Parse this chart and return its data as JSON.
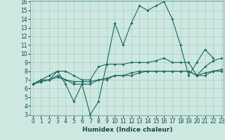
{
  "xlabel": "Humidex (Indice chaleur)",
  "background_color": "#cce8e0",
  "grid_color": "#aaccc4",
  "line_color": "#1a6860",
  "x": [
    0,
    1,
    2,
    3,
    4,
    5,
    6,
    7,
    8,
    9,
    10,
    11,
    12,
    13,
    14,
    15,
    16,
    17,
    18,
    19,
    20,
    21,
    22,
    23
  ],
  "line1": [
    6.5,
    7.0,
    7.5,
    8.0,
    6.5,
    4.5,
    6.5,
    3.0,
    4.5,
    8.8,
    13.5,
    11.0,
    13.5,
    15.5,
    15.0,
    15.5,
    16.0,
    14.0,
    11.0,
    7.5,
    9.0,
    10.5,
    9.5,
    null
  ],
  "line2": [
    6.5,
    7.0,
    7.0,
    8.0,
    8.0,
    7.5,
    7.0,
    7.0,
    8.5,
    8.8,
    8.8,
    8.8,
    9.0,
    9.0,
    9.0,
    9.2,
    9.5,
    9.0,
    9.0,
    9.0,
    7.5,
    8.5,
    9.2,
    9.5
  ],
  "line3": [
    6.5,
    6.8,
    7.0,
    7.5,
    7.0,
    6.5,
    6.5,
    6.5,
    7.0,
    7.0,
    7.5,
    7.5,
    7.5,
    7.8,
    8.0,
    8.0,
    8.0,
    8.0,
    8.0,
    8.0,
    7.5,
    7.5,
    8.0,
    8.0
  ],
  "line4": [
    6.5,
    6.8,
    7.0,
    7.3,
    7.0,
    6.8,
    6.8,
    6.8,
    7.0,
    7.2,
    7.5,
    7.5,
    7.8,
    8.0,
    8.0,
    8.0,
    8.0,
    8.0,
    8.0,
    8.0,
    7.5,
    7.8,
    8.0,
    8.2
  ],
  "ylim": [
    3,
    16
  ],
  "yticks": [
    3,
    4,
    5,
    6,
    7,
    8,
    9,
    10,
    11,
    12,
    13,
    14,
    15,
    16
  ],
  "xticks": [
    0,
    1,
    2,
    3,
    4,
    5,
    6,
    7,
    8,
    9,
    10,
    11,
    12,
    13,
    14,
    15,
    16,
    17,
    18,
    19,
    20,
    21,
    22,
    23
  ],
  "tick_fontsize": 5.5,
  "xlabel_fontsize": 6.5
}
